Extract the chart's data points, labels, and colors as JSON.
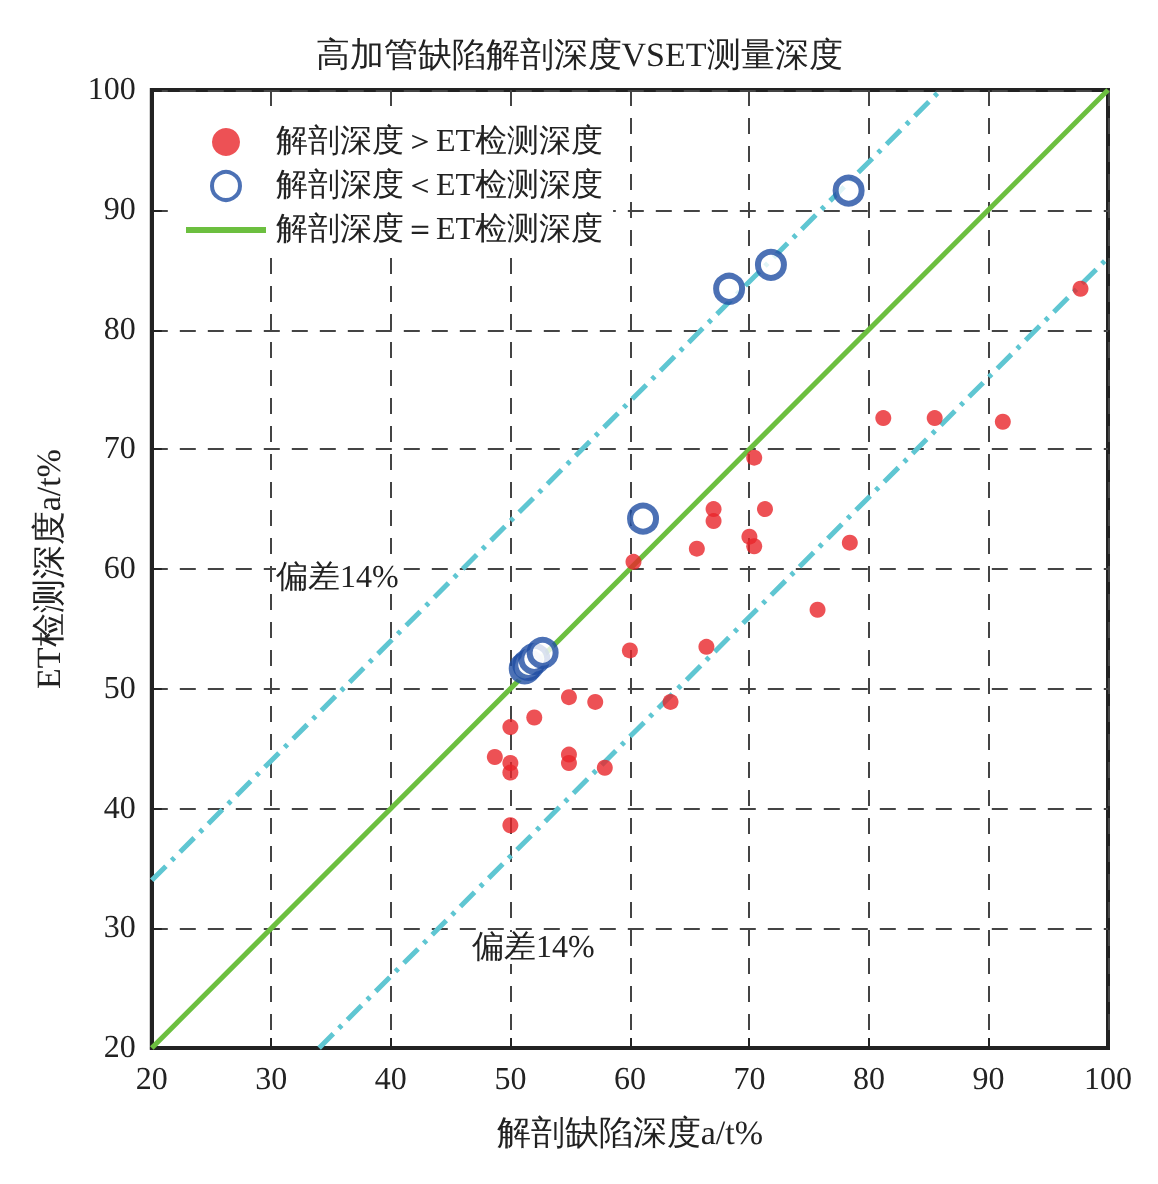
{
  "chart_data": {
    "type": "scatter",
    "title": "高加管缺陷解剖深度VSET测量深度",
    "xlabel": "解剖缺陷深度a/t%",
    "ylabel": "ET检测深度a/t%",
    "xlim": [
      20,
      100
    ],
    "ylim": [
      20,
      100
    ],
    "xticks": [
      20,
      30,
      40,
      50,
      60,
      70,
      80,
      90,
      100
    ],
    "yticks": [
      20,
      30,
      40,
      50,
      60,
      70,
      80,
      90,
      100
    ],
    "grid": true,
    "legend": "top left",
    "series": [
      {
        "name": "解剖深度＞ET检测深度",
        "marker": "circle",
        "color": "#e8262a",
        "x": [
          97.7,
          81.2,
          85.5,
          91.2,
          70.4,
          67.0,
          67.0,
          71.3,
          65.6,
          60.3,
          70.0,
          70.4,
          78.4,
          75.7,
          60.0,
          66.4,
          54.9,
          52.0,
          50.0,
          57.1,
          63.4,
          48.7,
          50.0,
          50.0,
          54.9,
          54.9,
          57.9,
          50.0
        ],
        "values": [
          83.4,
          72.6,
          72.6,
          72.3,
          69.3,
          65.0,
          64.0,
          65.0,
          61.7,
          60.6,
          62.7,
          61.9,
          62.2,
          56.6,
          53.2,
          53.5,
          49.3,
          47.6,
          46.8,
          48.9,
          48.9,
          44.3,
          43.8,
          43.0,
          44.5,
          43.8,
          43.4,
          38.6
        ]
      },
      {
        "name": "解剖深度＜ET检测深度",
        "marker": "circle",
        "color": "#1f4ea3",
        "x": [
          78.3,
          71.8,
          68.3,
          61.1,
          51.2,
          51.5,
          52.0,
          52.7
        ],
        "values": [
          91.6,
          85.4,
          83.4,
          64.2,
          51.7,
          52.0,
          52.5,
          53.0
        ]
      },
      {
        "name": "解剖深度＝ET检测深度",
        "type": "line",
        "color": "#6cbf3f",
        "x": [
          20,
          100
        ],
        "values": [
          20,
          100
        ]
      },
      {
        "type": "line",
        "line_style": "dashed",
        "color": "#5fc6d2",
        "x": [
          20,
          86
        ],
        "values": [
          34,
          100
        ]
      },
      {
        "type": "line",
        "line_style": "dashed",
        "color": "#5fc6d2",
        "x": [
          34,
          100
        ],
        "values": [
          20,
          86
        ]
      }
    ],
    "annotations": [
      "偏差14%",
      "偏差14%"
    ]
  }
}
